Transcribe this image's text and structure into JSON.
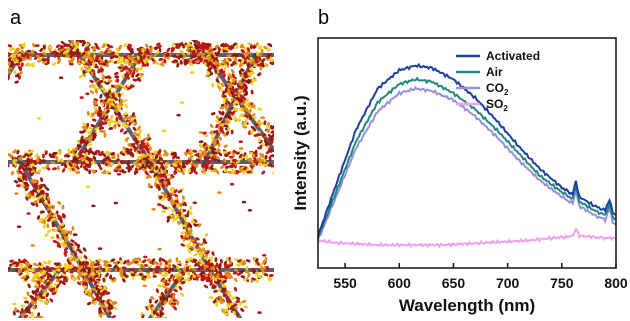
{
  "panel_a": {
    "letter": "a",
    "structure_color": "#3c4456",
    "particle_colors": [
      "#c0141c",
      "#e08a1a",
      "#f0d020",
      "#8a1a10"
    ]
  },
  "panel_b": {
    "letter": "b"
  },
  "chart_data": {
    "type": "line",
    "title": "",
    "xlabel": "Wavelength (nm)",
    "ylabel": "Intensity (a.u.)",
    "xlim": [
      525,
      800
    ],
    "ylim": [
      0,
      1.0
    ],
    "xticks": [
      550,
      600,
      650,
      700,
      750,
      800
    ],
    "yticks_shown": false,
    "legend_position": "top-right",
    "series": [
      {
        "name": "Activated",
        "name_main": "Activated",
        "name_sub": "",
        "color": "#1f3fa0",
        "points": [
          [
            525,
            0.14
          ],
          [
            540,
            0.34
          ],
          [
            560,
            0.6
          ],
          [
            580,
            0.78
          ],
          [
            600,
            0.86
          ],
          [
            615,
            0.88
          ],
          [
            630,
            0.87
          ],
          [
            650,
            0.82
          ],
          [
            670,
            0.74
          ],
          [
            690,
            0.64
          ],
          [
            710,
            0.53
          ],
          [
            730,
            0.43
          ],
          [
            750,
            0.35
          ],
          [
            760,
            0.32
          ],
          [
            763,
            0.38
          ],
          [
            766,
            0.31
          ],
          [
            780,
            0.27
          ],
          [
            790,
            0.25
          ],
          [
            794,
            0.3
          ],
          [
            797,
            0.24
          ],
          [
            800,
            0.23
          ]
        ]
      },
      {
        "name": "Air",
        "name_main": "Air",
        "name_sub": "",
        "color": "#1e8a7c",
        "points": [
          [
            525,
            0.13
          ],
          [
            540,
            0.31
          ],
          [
            560,
            0.55
          ],
          [
            580,
            0.72
          ],
          [
            600,
            0.8
          ],
          [
            615,
            0.82
          ],
          [
            630,
            0.81
          ],
          [
            650,
            0.76
          ],
          [
            670,
            0.69
          ],
          [
            690,
            0.6
          ],
          [
            710,
            0.5
          ],
          [
            730,
            0.4
          ],
          [
            750,
            0.33
          ],
          [
            760,
            0.3
          ],
          [
            763,
            0.36
          ],
          [
            766,
            0.29
          ],
          [
            780,
            0.25
          ],
          [
            790,
            0.23
          ],
          [
            794,
            0.28
          ],
          [
            797,
            0.22
          ],
          [
            800,
            0.21
          ]
        ]
      },
      {
        "name": "CO2",
        "name_main": "CO",
        "name_sub": "2",
        "color": "#9a8fd8",
        "points": [
          [
            525,
            0.12
          ],
          [
            540,
            0.29
          ],
          [
            560,
            0.52
          ],
          [
            580,
            0.68
          ],
          [
            600,
            0.76
          ],
          [
            615,
            0.78
          ],
          [
            630,
            0.77
          ],
          [
            650,
            0.73
          ],
          [
            670,
            0.66
          ],
          [
            690,
            0.57
          ],
          [
            710,
            0.47
          ],
          [
            730,
            0.38
          ],
          [
            750,
            0.31
          ],
          [
            760,
            0.28
          ],
          [
            763,
            0.34
          ],
          [
            766,
            0.27
          ],
          [
            780,
            0.23
          ],
          [
            790,
            0.21
          ],
          [
            794,
            0.26
          ],
          [
            797,
            0.2
          ],
          [
            800,
            0.19
          ]
        ]
      },
      {
        "name": "SO2",
        "name_main": "SO",
        "name_sub": "2",
        "color": "#f0a0f0",
        "points": [
          [
            525,
            0.12
          ],
          [
            540,
            0.11
          ],
          [
            560,
            0.105
          ],
          [
            580,
            0.1
          ],
          [
            600,
            0.1
          ],
          [
            620,
            0.1
          ],
          [
            640,
            0.1
          ],
          [
            660,
            0.105
          ],
          [
            680,
            0.11
          ],
          [
            700,
            0.115
          ],
          [
            720,
            0.12
          ],
          [
            740,
            0.13
          ],
          [
            755,
            0.135
          ],
          [
            760,
            0.14
          ],
          [
            763,
            0.17
          ],
          [
            766,
            0.14
          ],
          [
            780,
            0.135
          ],
          [
            790,
            0.13
          ],
          [
            800,
            0.13
          ]
        ]
      }
    ]
  }
}
